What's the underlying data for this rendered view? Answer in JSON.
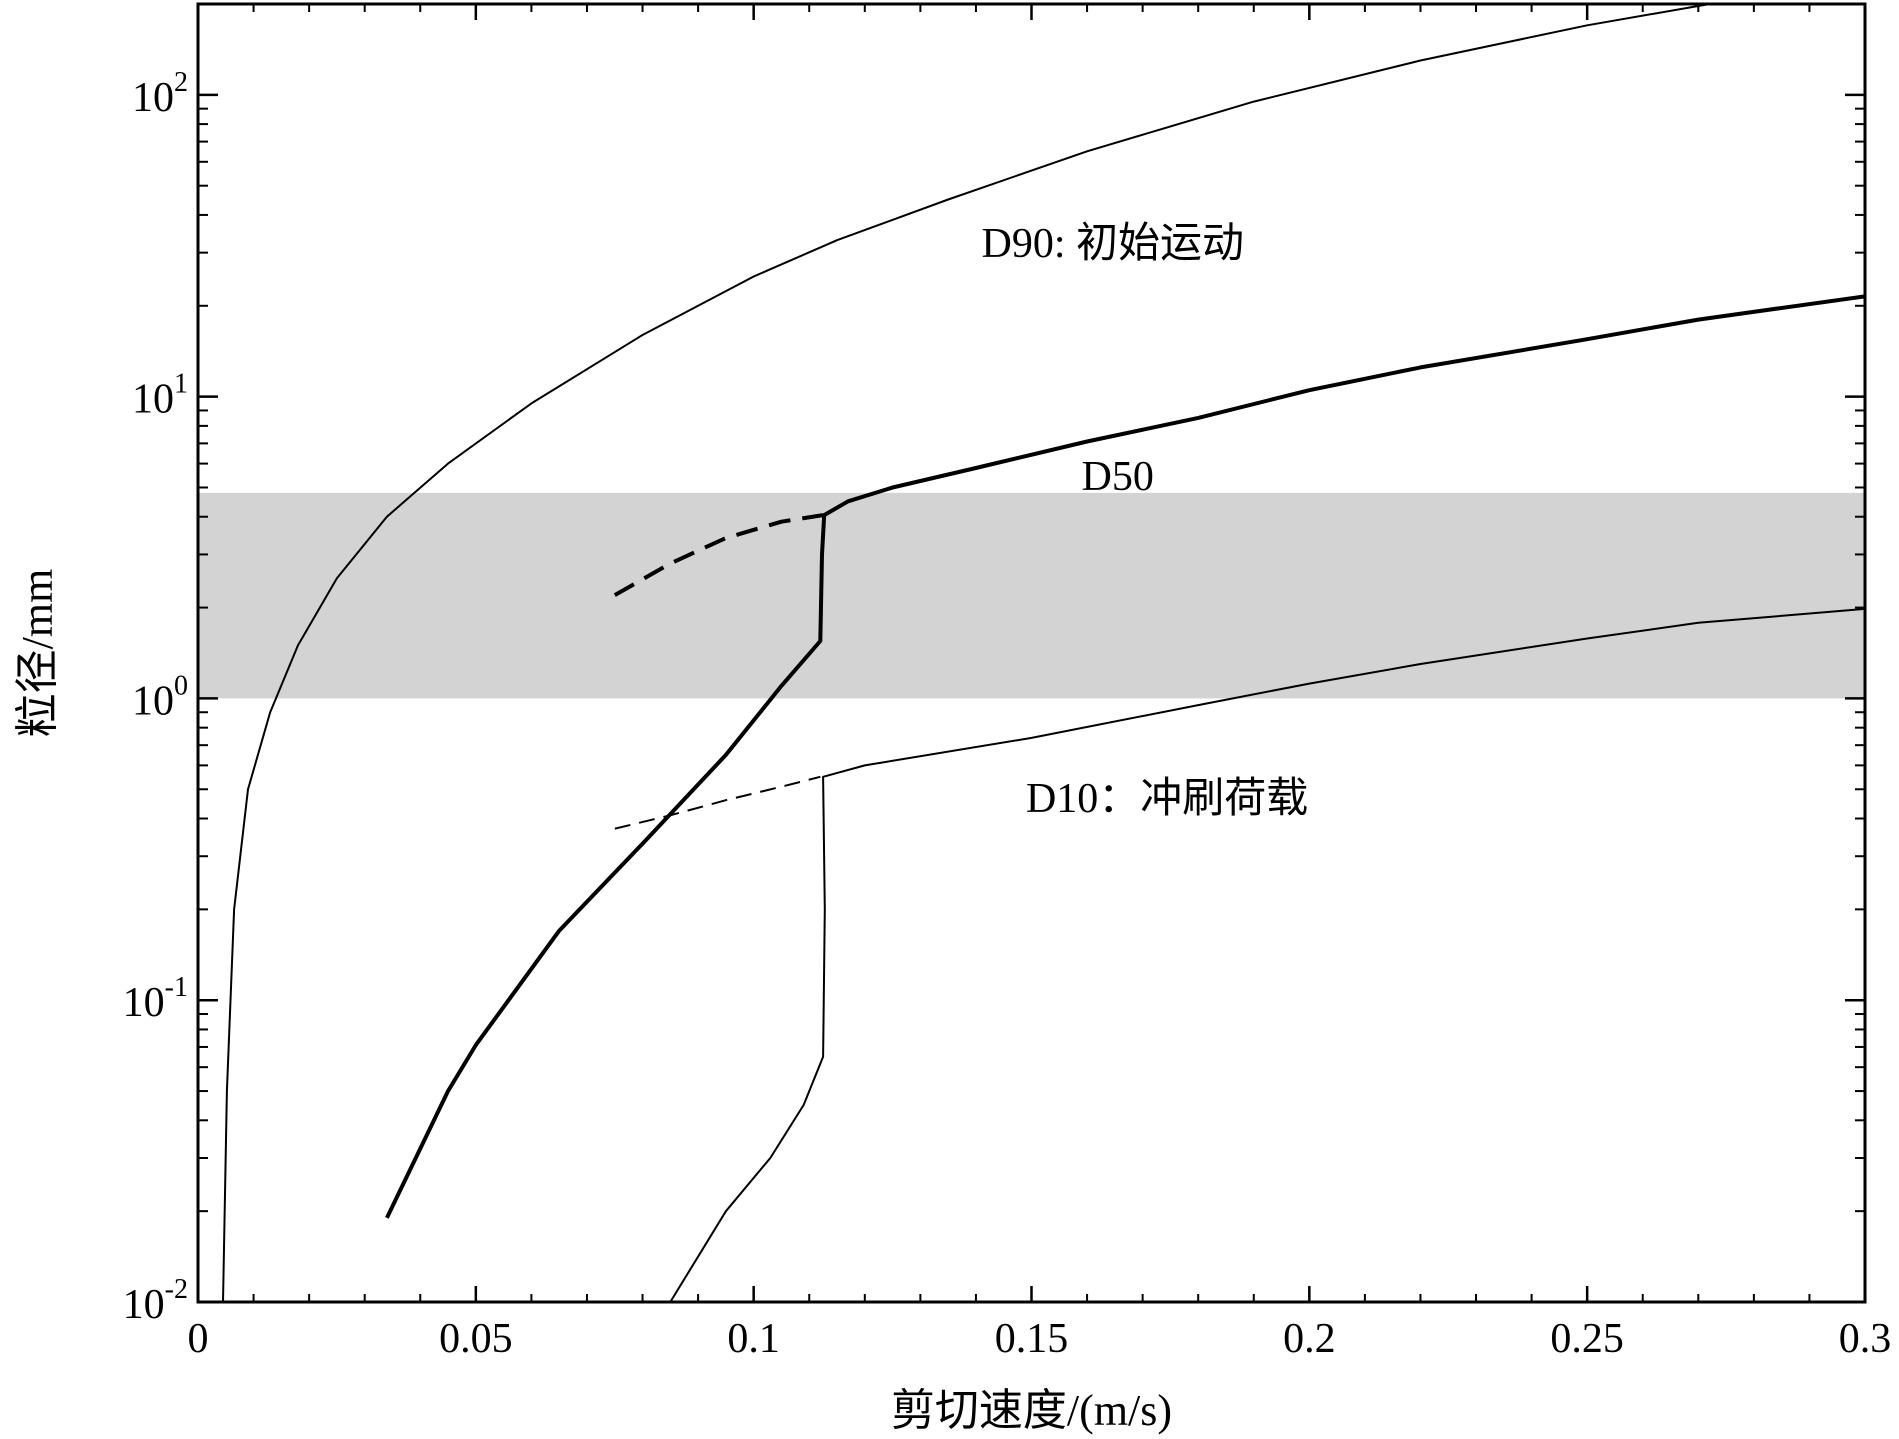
{
  "chart_data": {
    "type": "line",
    "xlabel": "剪切速度/(m/s)",
    "ylabel": "粒径/mm",
    "xlim": [
      0,
      0.3
    ],
    "ylim": [
      0.01,
      200
    ],
    "yscale": "log",
    "grid": false,
    "legend": "none",
    "x_ticks": [
      {
        "value": 0,
        "label": "0"
      },
      {
        "value": 0.05,
        "label": "0.05"
      },
      {
        "value": 0.1,
        "label": "0.1"
      },
      {
        "value": 0.15,
        "label": "0.15"
      },
      {
        "value": 0.2,
        "label": "0.2"
      },
      {
        "value": 0.25,
        "label": "0.25"
      },
      {
        "value": 0.3,
        "label": "0.3"
      }
    ],
    "y_ticks": [
      {
        "value": 0.01,
        "base": "10",
        "exp": "-2"
      },
      {
        "value": 0.1,
        "base": "10",
        "exp": "-1"
      },
      {
        "value": 1,
        "base": "10",
        "exp": "0"
      },
      {
        "value": 10,
        "base": "10",
        "exp": "1"
      },
      {
        "value": 100,
        "base": "10",
        "exp": "2"
      }
    ],
    "shaded_band": {
      "y_range": [
        1,
        4.8
      ],
      "color": "#d3d3d3"
    },
    "annotations": [
      {
        "text": "D90: 初始运动",
        "x": 0.141,
        "y": 29
      },
      {
        "text": "D50",
        "x": 0.159,
        "y": 4.9
      },
      {
        "text": "D10：冲刷荷载",
        "x": 0.149,
        "y": 0.42
      }
    ],
    "series": [
      {
        "style": "solid",
        "weight": "thin",
        "points": [
          [
            0.0045,
            0.01
          ],
          [
            0.0052,
            0.05
          ],
          [
            0.0065,
            0.2
          ],
          [
            0.009,
            0.5
          ],
          [
            0.013,
            0.9
          ],
          [
            0.018,
            1.5
          ],
          [
            0.025,
            2.5
          ],
          [
            0.034,
            4
          ],
          [
            0.045,
            6
          ],
          [
            0.06,
            9.5
          ],
          [
            0.08,
            16
          ],
          [
            0.1,
            25
          ],
          [
            0.115,
            33
          ],
          [
            0.135,
            45
          ],
          [
            0.16,
            65
          ],
          [
            0.19,
            95
          ],
          [
            0.22,
            130
          ],
          [
            0.25,
            170
          ],
          [
            0.285,
            220
          ]
        ]
      },
      {
        "style": "solid",
        "weight": "thick",
        "points": [
          [
            0.034,
            0.019
          ],
          [
            0.045,
            0.05
          ],
          [
            0.05,
            0.071
          ],
          [
            0.065,
            0.17
          ],
          [
            0.08,
            0.33
          ],
          [
            0.095,
            0.65
          ],
          [
            0.105,
            1.1
          ],
          [
            0.112,
            1.55
          ],
          [
            0.1123,
            3.0
          ],
          [
            0.1127,
            4.05
          ],
          [
            0.117,
            4.5
          ],
          [
            0.125,
            5.0
          ],
          [
            0.14,
            5.8
          ],
          [
            0.16,
            7.1
          ],
          [
            0.18,
            8.5
          ],
          [
            0.2,
            10.5
          ],
          [
            0.22,
            12.5
          ],
          [
            0.25,
            15.5
          ],
          [
            0.27,
            18
          ],
          [
            0.3,
            21.5
          ]
        ]
      },
      {
        "style": "dashed",
        "weight": "thick",
        "points": [
          [
            0.075,
            2.2
          ],
          [
            0.085,
            2.8
          ],
          [
            0.095,
            3.4
          ],
          [
            0.105,
            3.85
          ],
          [
            0.1125,
            4.05
          ]
        ]
      },
      {
        "style": "solid",
        "weight": "thin",
        "points": [
          [
            0.085,
            0.01
          ],
          [
            0.095,
            0.02
          ],
          [
            0.103,
            0.03
          ],
          [
            0.109,
            0.045
          ],
          [
            0.1125,
            0.065
          ],
          [
            0.1128,
            0.2
          ],
          [
            0.1125,
            0.55
          ],
          [
            0.12,
            0.6
          ],
          [
            0.15,
            0.74
          ],
          [
            0.18,
            0.95
          ],
          [
            0.2,
            1.12
          ],
          [
            0.22,
            1.3
          ],
          [
            0.25,
            1.58
          ],
          [
            0.27,
            1.78
          ],
          [
            0.3,
            1.98
          ]
        ]
      },
      {
        "style": "dashed",
        "weight": "thin",
        "points": [
          [
            0.075,
            0.37
          ],
          [
            0.085,
            0.41
          ],
          [
            0.095,
            0.46
          ],
          [
            0.105,
            0.51
          ],
          [
            0.112,
            0.55
          ]
        ]
      }
    ]
  }
}
